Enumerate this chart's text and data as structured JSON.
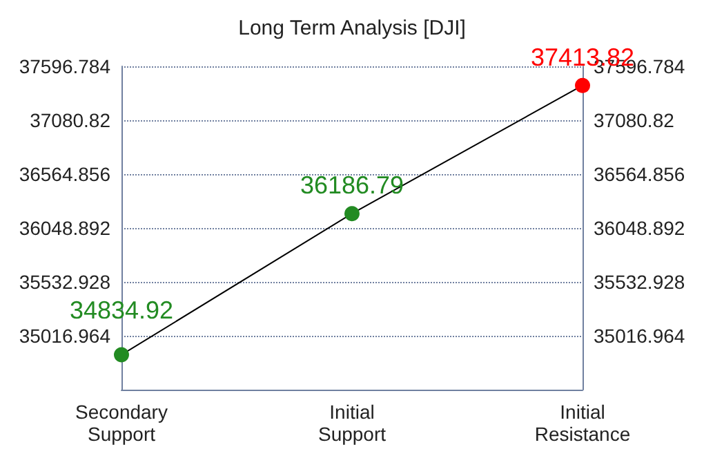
{
  "chart_data": {
    "type": "line",
    "title": "Long Term Analysis [DJI]",
    "categories": [
      "Secondary\nSupport",
      "Initial\nSupport",
      "Initial\nResistance"
    ],
    "values": [
      34834.92,
      36186.79,
      37413.82
    ],
    "colors": [
      "#228b22",
      "#228b22",
      "#ff0000"
    ],
    "data_labels": true,
    "marker": "circle",
    "grid": "y",
    "ylim": [
      34501,
      37596.784
    ],
    "yticks": [
      35016.964,
      35532.928,
      36048.892,
      36564.856,
      37080.82,
      37596.784
    ],
    "y2lim": [
      34501,
      37596.784
    ],
    "y2ticks": [
      35016.964,
      35532.928,
      36048.892,
      36564.856,
      37080.82,
      37596.784
    ]
  }
}
